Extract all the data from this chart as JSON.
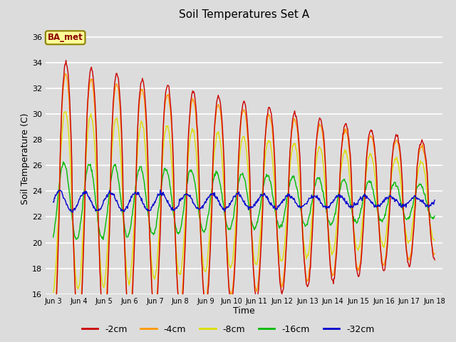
{
  "title": "Soil Temperatures Set A",
  "xlabel": "Time",
  "ylabel": "Soil Temperature (C)",
  "ylim": [
    16,
    37
  ],
  "yticks": [
    16,
    18,
    20,
    22,
    24,
    26,
    28,
    30,
    32,
    34,
    36
  ],
  "background_color": "#dcdcdc",
  "annotation_text": "BA_met",
  "annotation_bg": "#ffff99",
  "annotation_border": "#8B8000",
  "colors": {
    "-2cm": "#cc0000",
    "-4cm": "#ff9900",
    "-8cm": "#dddd00",
    "-16cm": "#00bb00",
    "-32cm": "#0000cc"
  },
  "legend_labels": [
    "-2cm",
    "-4cm",
    "-8cm",
    "-16cm",
    "-32cm"
  ],
  "mean_temp": 23.2,
  "n_points": 720,
  "n_days": 15,
  "figsize": [
    6.4,
    4.8
  ],
  "dpi": 100,
  "days": [
    "Jun 3",
    "Jun 4",
    "Jun 5",
    "Jun 6",
    "Jun 7",
    "Jun 8",
    "Jun 9",
    "Jun 10",
    "Jun 11",
    "Jun 12",
    "Jun 13",
    "Jun 14",
    "Jun 15",
    "Jun 16",
    "Jun 17",
    "Jun 18"
  ]
}
